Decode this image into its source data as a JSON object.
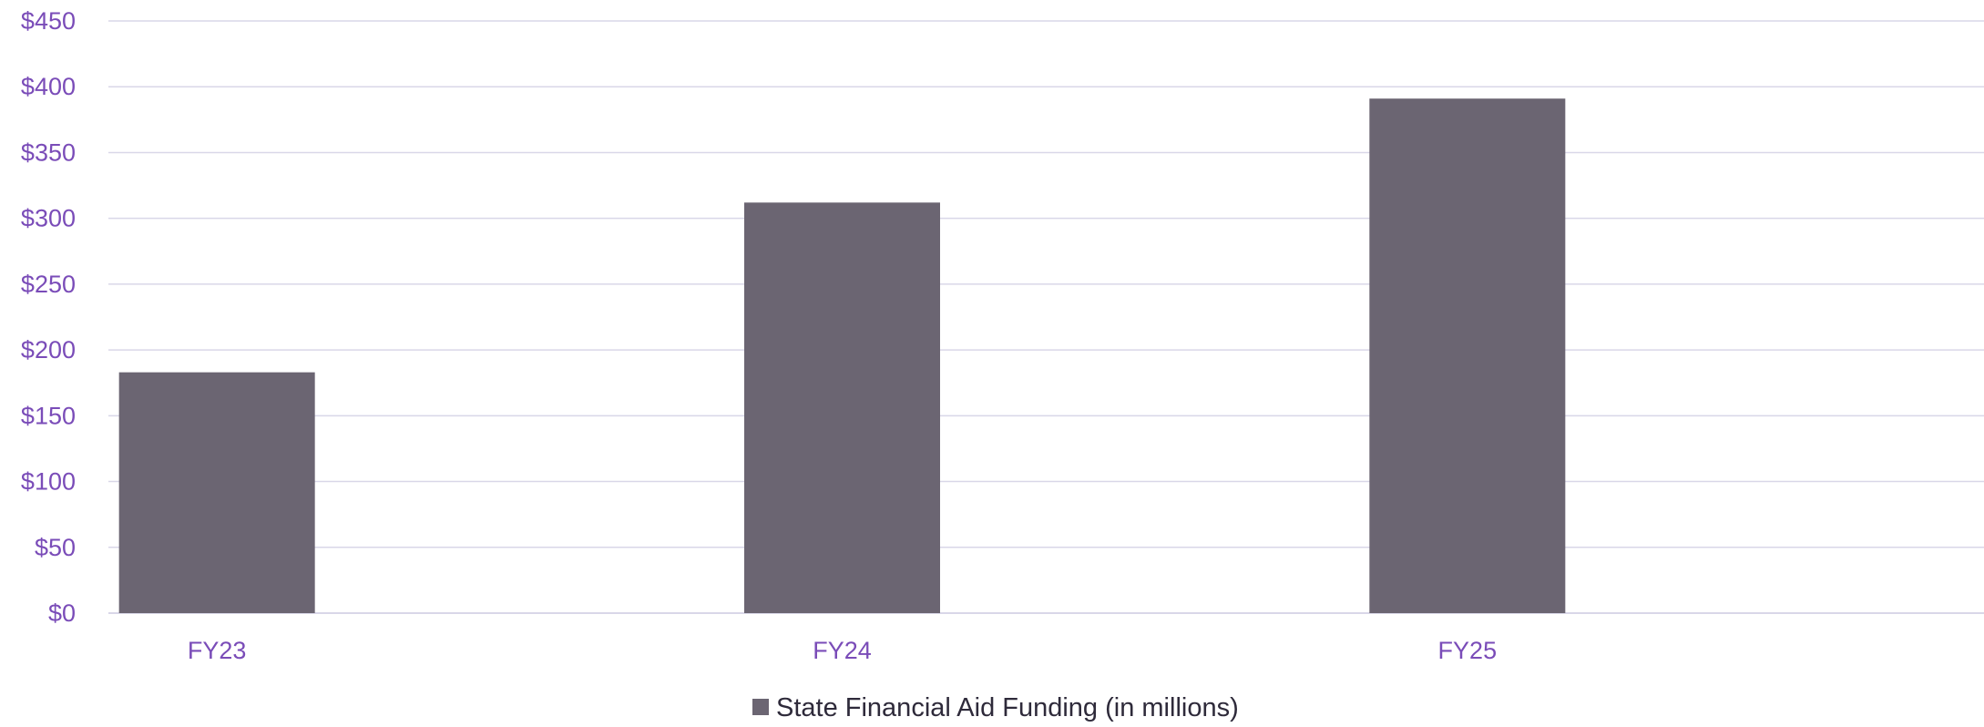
{
  "chart_data": {
    "type": "bar",
    "categories": [
      "FY23",
      "FY24",
      "FY25"
    ],
    "series": [
      {
        "name": "State Financial Aid Funding (in millions)",
        "values": [
          183,
          312,
          391
        ],
        "color": "#6b6572"
      }
    ],
    "y_ticks": [
      "$0",
      "$50",
      "$100",
      "$150",
      "$200",
      "$250",
      "$300",
      "$350",
      "$400",
      "$450"
    ],
    "ylim": [
      0,
      450
    ],
    "grid": true,
    "legend_position": "bottom",
    "colors": {
      "tick_text": "#7a4cb8",
      "gridline": "#d9d7e8",
      "legend_text": "#2e2a3a",
      "bar": "#6b6572"
    }
  }
}
